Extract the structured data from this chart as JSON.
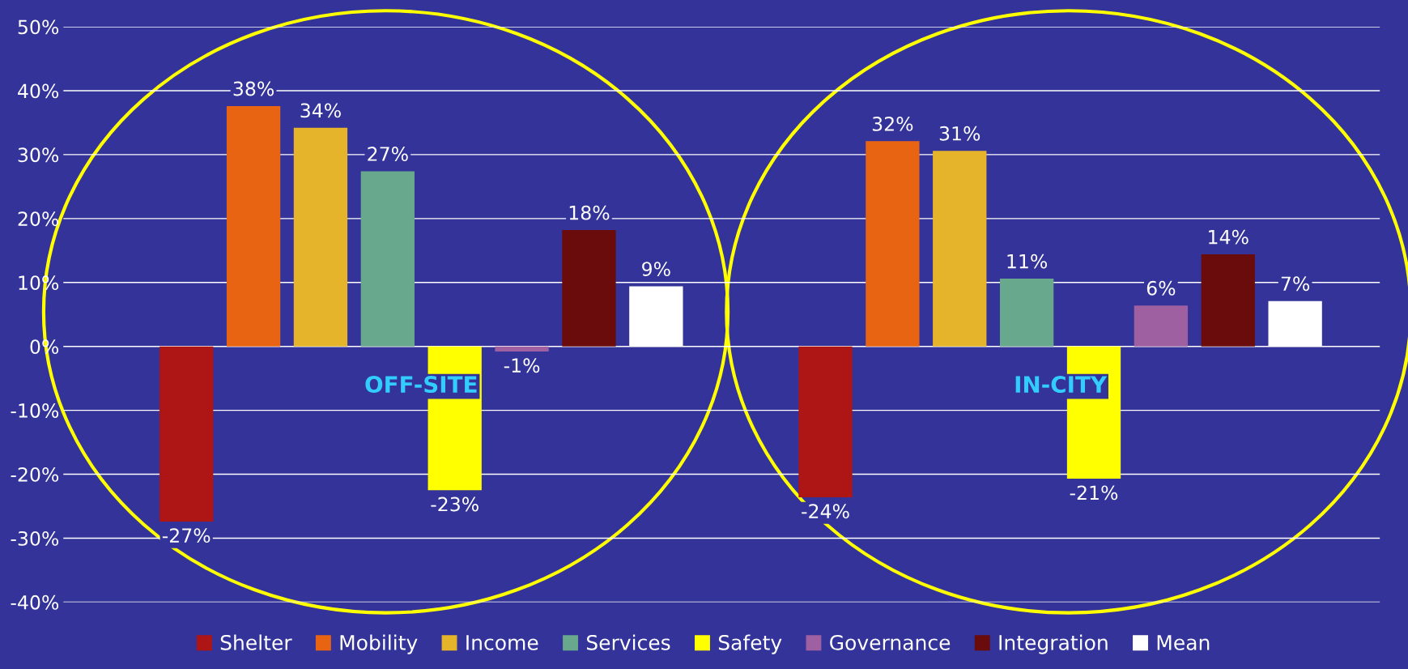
{
  "chart_data": {
    "type": "bar",
    "categories": [
      "OFF-SITE",
      "IN-CITY"
    ],
    "series": [
      {
        "name": "Shelter",
        "color": "#ae1515",
        "values": [
          -27.4,
          -23.6
        ],
        "value_labels": [
          "-27%",
          "-24%"
        ]
      },
      {
        "name": "Mobility",
        "color": "#e86413",
        "values": [
          37.6,
          32.1
        ],
        "value_labels": [
          "38%",
          "32%"
        ]
      },
      {
        "name": "Income",
        "color": "#e6b42a",
        "values": [
          34.2,
          30.6
        ],
        "value_labels": [
          "34%",
          "31%"
        ]
      },
      {
        "name": "Services",
        "color": "#68a88c",
        "values": [
          27.4,
          10.6
        ],
        "value_labels": [
          "27%",
          "11%"
        ]
      },
      {
        "name": "Safety",
        "color": "#ffff00",
        "values": [
          -22.5,
          -20.7
        ],
        "value_labels": [
          "-23%",
          "-21%"
        ]
      },
      {
        "name": "Governance",
        "color": "#9e60a0",
        "values": [
          -0.8,
          6.4
        ],
        "value_labels": [
          "-1%",
          "6%"
        ]
      },
      {
        "name": "Integration",
        "color": "#6a0c0c",
        "values": [
          18.2,
          14.4
        ],
        "value_labels": [
          "18%",
          "14%"
        ]
      },
      {
        "name": "Mean",
        "color": "#ffffff",
        "values": [
          9.4,
          7.1
        ],
        "value_labels": [
          "9%",
          "7%"
        ]
      }
    ],
    "ylim": [
      -40,
      50
    ],
    "yticks": [
      {
        "value": -40,
        "label": "-40%"
      },
      {
        "value": -30,
        "label": "-30%"
      },
      {
        "value": -20,
        "label": "-20%"
      },
      {
        "value": -10,
        "label": "-10%"
      },
      {
        "value": 0,
        "label": "0%"
      },
      {
        "value": 10,
        "label": "10%"
      },
      {
        "value": 20,
        "label": "20%"
      },
      {
        "value": 30,
        "label": "30%"
      },
      {
        "value": 40,
        "label": "40%"
      },
      {
        "value": 50,
        "label": "50%"
      }
    ],
    "grid": "y",
    "legend": "bottom"
  }
}
